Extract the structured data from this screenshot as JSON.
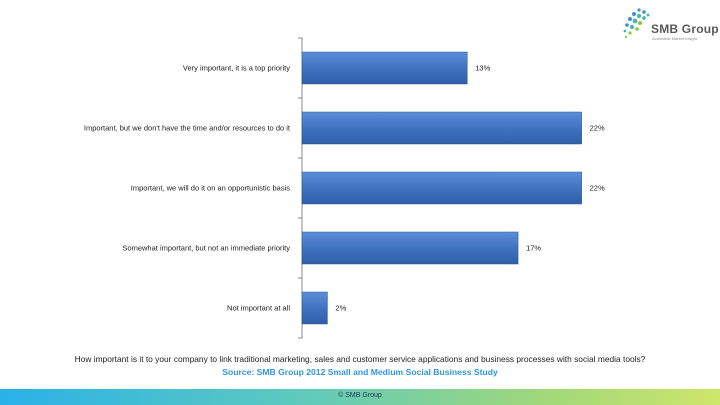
{
  "brand": {
    "name": "SMB Group",
    "tagline": "Actionable Market Insight",
    "colors": {
      "dot_blue": "#3d8fd0",
      "dot_teal": "#4fb7b0",
      "dot_green": "#8cc63f"
    }
  },
  "caption": {
    "question": "How important is it to your company to link traditional marketing, sales and customer service applications and business processes with social media tools?",
    "source": "Source: SMB Group 2012 Small and Medium Social Business Study"
  },
  "footer": {
    "copyright": "© SMB Group"
  },
  "chart_data": {
    "type": "bar",
    "orientation": "horizontal",
    "title": "",
    "xlabel": "",
    "ylabel": "",
    "grid": false,
    "legend": "none",
    "xlim": [
      0,
      22.5
    ],
    "bar_color": "#3f72c0",
    "categories": [
      "Very important, it is a top priority",
      "Important, but we don't have the time and/or resources to do it",
      "Important, we will do it on an opportunistic basis",
      "Somewhat important, but not an immediate priority",
      "Not important at all"
    ],
    "values": [
      13,
      22,
      22,
      17,
      2
    ],
    "value_labels": [
      "13%",
      "22%",
      "22%",
      "17%",
      "2%"
    ]
  }
}
